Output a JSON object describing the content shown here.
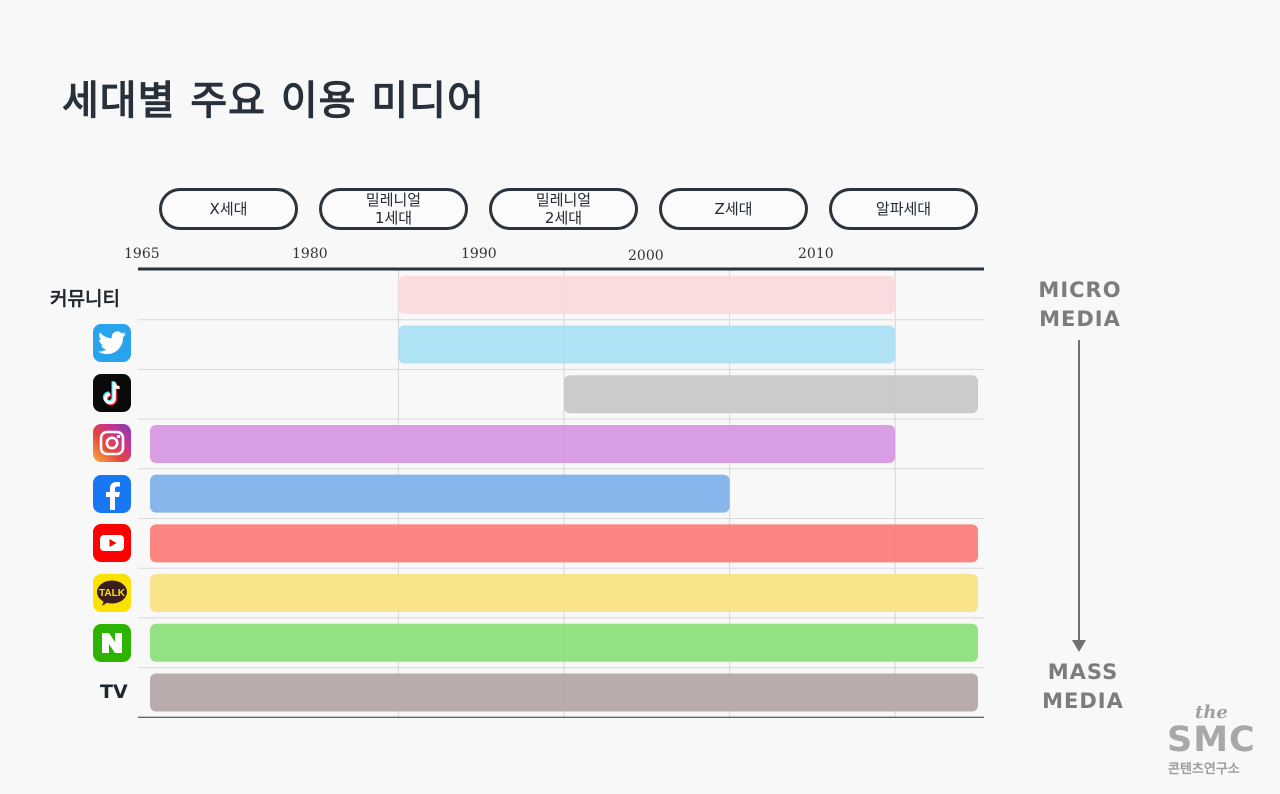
{
  "title": "세대별 주요 이용 미디어",
  "generations": [
    "X세대",
    "밀레니얼\n1세대",
    "밀레니얼\n2세대",
    "Z세대",
    "알파세대"
  ],
  "side_labels": {
    "top": "MICRO\nMEDIA",
    "bottom": "MASS\nMEDIA"
  },
  "logo": {
    "the": "the",
    "name": "SMC",
    "sub": "콘텐츠연구소"
  },
  "chart_data": {
    "type": "bar",
    "orientation": "horizontal",
    "title": "세대별 주요 이용 미디어",
    "x_ticks": [
      1965,
      1980,
      1990,
      2000,
      2010
    ],
    "xlim": [
      1965,
      2015
    ],
    "grid": true,
    "rows": [
      {
        "label": "커뮤니티",
        "icon": "",
        "start": 1980,
        "end": 2010,
        "color": "#fad9dc"
      },
      {
        "label": "",
        "icon": "twitter-icon",
        "start": 1980,
        "end": 2010,
        "color": "#abe0f3"
      },
      {
        "label": "",
        "icon": "tiktok-icon",
        "start": 1990,
        "end": 2015,
        "color": "#c8c8c8"
      },
      {
        "label": "",
        "icon": "instagram-icon",
        "start": 1965,
        "end": 2010,
        "color": "#d798e1"
      },
      {
        "label": "",
        "icon": "facebook-icon",
        "start": 1965,
        "end": 2000,
        "color": "#80b2ea"
      },
      {
        "label": "",
        "icon": "youtube-icon",
        "start": 1965,
        "end": 2015,
        "color": "#fc7d7a"
      },
      {
        "label": "",
        "icon": "kakaotalk-icon",
        "start": 1965,
        "end": 2015,
        "color": "#f9e386"
      },
      {
        "label": "",
        "icon": "naver-icon",
        "start": 1965,
        "end": 2015,
        "color": "#8ddf7b"
      },
      {
        "label": "TV",
        "icon": "",
        "start": 1965,
        "end": 2015,
        "color": "#b5a8a8"
      }
    ]
  }
}
